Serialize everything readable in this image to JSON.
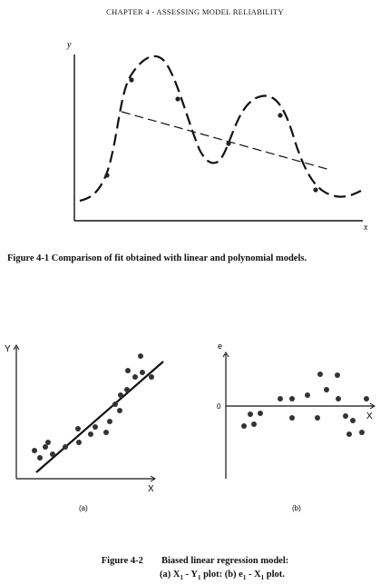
{
  "header": {
    "text": "CHAPTER 4 - ASSESSING MODEL RELIABILITY"
  },
  "figure1": {
    "caption": "Figure 4-1  Comparison of fit obtained with linear and polynomial models.",
    "y_label": "y",
    "x_label": "x"
  },
  "figure2": {
    "caption_label": "Figure 4-2",
    "caption_title": "Biased linear regression model:",
    "caption_line2_a": "(a) X",
    "caption_sub_a": "1",
    "caption_line2_b": " - Y",
    "caption_sub_b": "1",
    "caption_line2_c": " plot:  (b) e",
    "caption_sub_c": "1",
    "caption_line2_d": " - X",
    "caption_sub_d": "1",
    "caption_line2_e": " plot.",
    "plot_a": {
      "y_label": "Y",
      "x_label": "X",
      "panel_label": "(a)"
    },
    "plot_b": {
      "y_label": "e",
      "x_label": "X",
      "zero_label": "0",
      "panel_label": "(b)"
    }
  },
  "chart_data": [
    {
      "type": "line",
      "title": "",
      "description_series": [
        {
          "name": "",
          "style": "long-dash",
          "x": [
            0.05,
            0.15,
            0.25,
            0.35,
            0.48,
            0.62,
            0.7,
            0.82,
            0.9,
            0.97
          ],
          "y": [
            0.1,
            0.45,
            0.9,
            0.68,
            0.3,
            0.68,
            0.65,
            0.2,
            0.12,
            0.12
          ]
        },
        {
          "name": "",
          "style": "dash",
          "x": [
            0.17,
            0.88
          ],
          "y": [
            0.62,
            0.3
          ]
        }
      ],
      "points": {
        "x": [
          0.13,
          0.23,
          0.42,
          0.59,
          0.86
        ],
        "y": [
          0.26,
          0.78,
          0.68,
          0.36,
          0.2
        ]
      }
    },
    {
      "type": "scatter",
      "title": "",
      "xlabel": "X",
      "ylabel": "Y",
      "points": {
        "x": [
          0.14,
          0.17,
          0.2,
          0.22,
          0.25,
          0.33,
          0.38,
          0.4,
          0.44,
          0.52,
          0.57,
          0.61,
          0.65,
          0.68,
          0.72,
          0.76,
          0.79,
          0.83,
          0.88,
          0.9,
          0.95
        ],
        "y": [
          0.3,
          0.25,
          0.36,
          0.31,
          0.29,
          0.34,
          0.4,
          0.29,
          0.35,
          0.34,
          0.38,
          0.5,
          0.47,
          0.55,
          0.67,
          0.72,
          0.77,
          0.85,
          0.79,
          0.96,
          0.77
        ]
      },
      "fit_line": {
        "x": [
          0.18,
          0.98
        ],
        "y": [
          0.13,
          0.89
        ]
      }
    },
    {
      "type": "scatter",
      "title": "",
      "xlabel": "X",
      "ylabel": "e",
      "zero_line": true,
      "points": {
        "x": [
          0.12,
          0.16,
          0.2,
          0.24,
          0.4,
          0.46,
          0.5,
          0.6,
          0.7,
          0.75,
          0.81,
          0.84,
          0.86,
          0.9,
          0.96,
          0.99,
          1.04,
          1.08
        ],
        "y": [
          -0.23,
          -0.14,
          -0.22,
          -0.12,
          0.1,
          -0.08,
          0.1,
          0.17,
          0.38,
          0.23,
          0.38,
          0.11,
          -0.07,
          -0.06,
          -0.35,
          -0.1,
          -0.33,
          0.06
        ]
      }
    }
  ]
}
